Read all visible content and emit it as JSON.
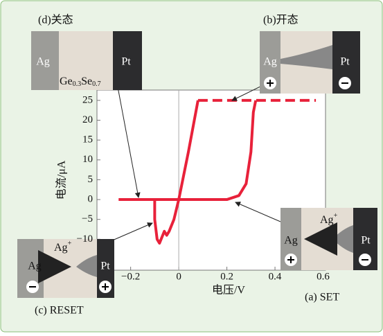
{
  "chart_data": {
    "type": "line",
    "x_label": "电压/V",
    "y_label": "电流/μA",
    "xlim": [
      -0.34,
      0.61
    ],
    "ylim": [
      -17.8,
      27.6
    ],
    "xticks": [
      {
        "value": -0.2,
        "label": "−0.2"
      },
      0,
      0.2,
      0.4,
      0.6
    ],
    "yticks": [
      {
        "value": -10,
        "label": "−10"
      },
      {
        "value": -5,
        "label": "−5"
      },
      0,
      5,
      10,
      15,
      20,
      25
    ],
    "series": [
      {
        "color": "#e8213a",
        "dashed": false,
        "x": [
          -0.25,
          0.2,
          0.25,
          0.28,
          0.3,
          0.31,
          0.32
        ],
        "values": [
          0,
          0,
          1,
          4,
          12,
          22,
          25
        ]
      },
      {
        "color": "#e8213a",
        "dashed": true,
        "x": [
          0.08,
          0.57
        ],
        "values": [
          25,
          25
        ]
      },
      {
        "color": "#e8213a",
        "dashed": false,
        "x": [
          0.08,
          0.04,
          0,
          -0.02,
          -0.04,
          -0.05,
          -0.06,
          -0.08,
          -0.09,
          -0.1,
          -0.1
        ],
        "values": [
          25,
          12,
          0,
          -5,
          -8,
          -9,
          -8,
          -11,
          -10,
          -5,
          0
        ]
      }
    ],
    "annotations": {
      "d": "(d)关态",
      "b": "(b)开态",
      "c": "(c) RESET",
      "a": "(a) SET",
      "ag": "Ag",
      "pt": "Pt",
      "ge": "Ge",
      "ge_sub": "0.3",
      "se": "Se",
      "se_sub": "0.7",
      "ion_sup": "+"
    }
  }
}
